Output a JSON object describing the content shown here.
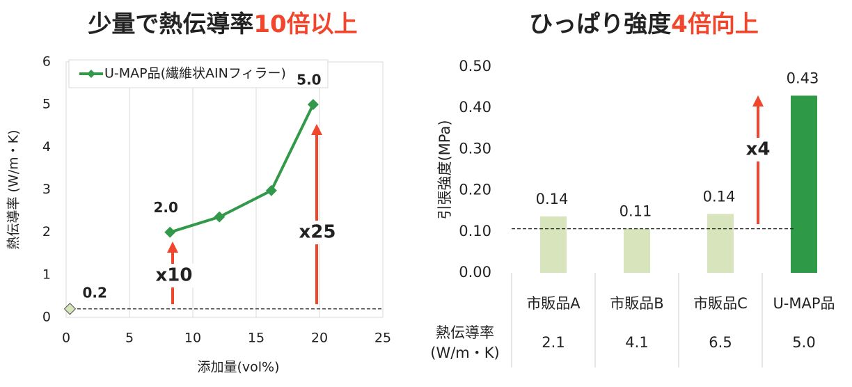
{
  "chart_data": [
    {
      "type": "line",
      "title": "少量で熱伝導率",
      "title_highlight": "10倍以上",
      "highlight_color": "#f0462d",
      "x_label": "添加量(vol%)",
      "y_label": "熱伝導率 (W/m・K)",
      "xlim": [
        0,
        25
      ],
      "xticks": [
        0,
        5,
        10,
        15,
        20,
        25
      ],
      "ylim": [
        0,
        6
      ],
      "yticks": [
        0,
        1,
        2,
        3,
        4,
        5,
        6
      ],
      "grid": "x",
      "legend": "top-left",
      "series": [
        {
          "name": "U-MAP品(繊維状AINフィラー)",
          "color": "#33994a",
          "x": [
            8.2,
            12.1,
            16.2,
            19.5
          ],
          "values": [
            2.0,
            2.36,
            2.98,
            5.0
          ],
          "value_labels": [
            "2.0",
            null,
            null,
            "5.0"
          ]
        }
      ],
      "reference": {
        "x": 0.3,
        "value": 0.2,
        "color": "#d6e4bc"
      },
      "annotations": [
        "x10",
        "x25"
      ]
    },
    {
      "type": "bar",
      "title": "ひっぱり強度",
      "title_highlight": "4倍向上",
      "highlight_color": "#f0462d",
      "y_label": "引張強度(MPa)",
      "categories": [
        "市販品A",
        "市販品B",
        "市販品C",
        "U-MAP品"
      ],
      "values": [
        0.137,
        0.107,
        0.143,
        0.43
      ],
      "value_labels": [
        "0.14",
        "0.11",
        "0.14",
        "0.43"
      ],
      "colors": [
        "#d7e4bc",
        "#d7e4bc",
        "#d7e4bc",
        "#2e9a48"
      ],
      "ylim": [
        0,
        0.5
      ],
      "yticks": [
        {
          "value": 0,
          "label": "0.00"
        },
        {
          "value": 0.1,
          "label": "0.10"
        },
        {
          "value": 0.2,
          "label": "0.20"
        },
        {
          "value": 0.3,
          "label": "0.30"
        },
        {
          "value": 0.4,
          "label": "0.40"
        },
        {
          "value": 0.5,
          "label": "0.50"
        }
      ],
      "annotations": [
        "x4"
      ],
      "table": {
        "row_header": [
          "熱伝導率",
          "(W/m・K)"
        ],
        "values": [
          "2.1",
          "4.1",
          "6.5",
          "5.0"
        ]
      }
    }
  ]
}
